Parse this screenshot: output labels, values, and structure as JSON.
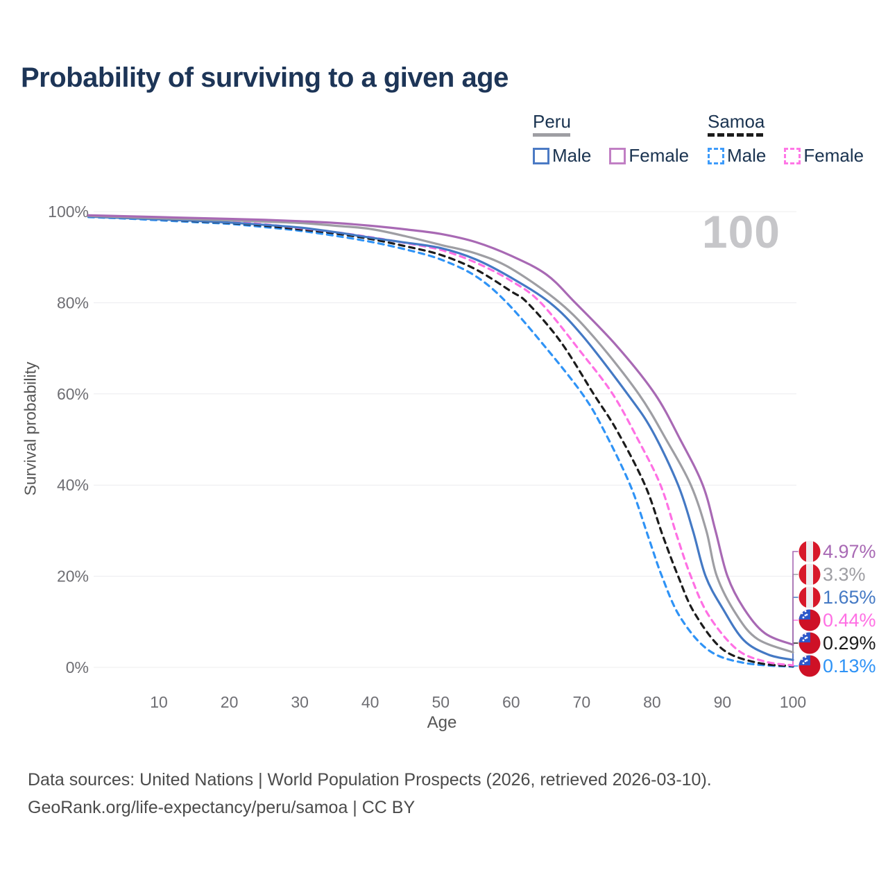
{
  "title": "Probability of surviving to a given age",
  "watermark": "100",
  "legend": {
    "groups": [
      {
        "label": "Peru",
        "line_style": "solid",
        "underline_color": "#9e9ea3",
        "items": [
          {
            "label": "Male",
            "color": "#4b7ac4"
          },
          {
            "label": "Female",
            "color": "#c17fc4"
          }
        ]
      },
      {
        "label": "Samoa",
        "line_style": "dashed",
        "underline_color": "#1c1c1c",
        "items": [
          {
            "label": "Male",
            "color": "#3d9bfa"
          },
          {
            "label": "Female",
            "color": "#ff77e6"
          }
        ]
      }
    ]
  },
  "axes": {
    "y_title": "Survival probability",
    "x_title": "Age",
    "y_ticks": [
      {
        "v": 100,
        "label": "100%"
      },
      {
        "v": 80,
        "label": "80%"
      },
      {
        "v": 60,
        "label": "60%"
      },
      {
        "v": 40,
        "label": "40%"
      },
      {
        "v": 20,
        "label": "20%"
      },
      {
        "v": 0,
        "label": "0%"
      }
    ],
    "x_ticks": [
      {
        "v": 10,
        "label": "10"
      },
      {
        "v": 20,
        "label": "20"
      },
      {
        "v": 30,
        "label": "30"
      },
      {
        "v": 40,
        "label": "40"
      },
      {
        "v": 50,
        "label": "50"
      },
      {
        "v": 60,
        "label": "60"
      },
      {
        "v": 70,
        "label": "70"
      },
      {
        "v": 80,
        "label": "80"
      },
      {
        "v": 90,
        "label": "90"
      },
      {
        "v": 100,
        "label": "100"
      }
    ]
  },
  "chart_data": {
    "type": "line",
    "title": "Probability of surviving to a given age",
    "xlabel": "Age",
    "ylabel": "Survival probability",
    "xlim": [
      0,
      100
    ],
    "ylim": [
      0,
      100
    ],
    "grid": "horizontal",
    "legend_position": "top-right",
    "series": [
      {
        "name": "Samoa Male",
        "country": "Samoa",
        "sex": "Male",
        "color": "#2f93f6",
        "dash": true,
        "flag": "samoa",
        "end_label": "0.13%",
        "label_slot": 5,
        "points": [
          [
            0,
            98.8
          ],
          [
            5,
            98.5
          ],
          [
            10,
            98.1
          ],
          [
            15,
            97.7
          ],
          [
            20,
            97.3
          ],
          [
            25,
            96.6
          ],
          [
            30,
            95.8
          ],
          [
            35,
            94.7
          ],
          [
            40,
            93.4
          ],
          [
            45,
            91.7
          ],
          [
            50,
            89.5
          ],
          [
            55,
            85.8
          ],
          [
            59.4,
            80
          ],
          [
            65,
            70
          ],
          [
            70.1,
            60
          ],
          [
            73,
            52.5
          ],
          [
            76.9,
            40
          ],
          [
            79.5,
            28.5
          ],
          [
            81.4,
            20
          ],
          [
            84,
            11
          ],
          [
            88,
            3.8
          ],
          [
            93,
            1
          ],
          [
            100,
            0.13
          ]
        ]
      },
      {
        "name": "Samoa Both sexes",
        "country": "Samoa",
        "sex": "All",
        "color": "#1c1c1c",
        "dash": true,
        "flag": "samoa",
        "end_label": "0.29%",
        "label_slot": 4,
        "points": [
          [
            0,
            99.0
          ],
          [
            5,
            98.7
          ],
          [
            10,
            98.3
          ],
          [
            15,
            97.9
          ],
          [
            20,
            97.5
          ],
          [
            25,
            96.9
          ],
          [
            30,
            96.1
          ],
          [
            35,
            95.2
          ],
          [
            40,
            94.0
          ],
          [
            45,
            92.4
          ],
          [
            50,
            90.5
          ],
          [
            55,
            87.3
          ],
          [
            60,
            82.5
          ],
          [
            62.3,
            80
          ],
          [
            67,
            71.5
          ],
          [
            71.7,
            60
          ],
          [
            75,
            52
          ],
          [
            79,
            40
          ],
          [
            81.5,
            29
          ],
          [
            83.7,
            20
          ],
          [
            86,
            12
          ],
          [
            90,
            4
          ],
          [
            95,
            1
          ],
          [
            100,
            0.29
          ]
        ]
      },
      {
        "name": "Samoa Female",
        "country": "Samoa",
        "sex": "Female",
        "color": "#ff70e4",
        "dash": true,
        "flag": "samoa",
        "end_label": "0.44%",
        "label_slot": 3,
        "points": [
          [
            0,
            99.1
          ],
          [
            5,
            98.8
          ],
          [
            10,
            98.5
          ],
          [
            15,
            98.1
          ],
          [
            20,
            97.8
          ],
          [
            25,
            97.2
          ],
          [
            30,
            96.4
          ],
          [
            35,
            95.5
          ],
          [
            40,
            94.4
          ],
          [
            45,
            93.1
          ],
          [
            50,
            91.6
          ],
          [
            55,
            88.8
          ],
          [
            60,
            84.8
          ],
          [
            64.2,
            80
          ],
          [
            70,
            69
          ],
          [
            74.4,
            60
          ],
          [
            78,
            50
          ],
          [
            81.2,
            40
          ],
          [
            83.5,
            29
          ],
          [
            85.5,
            20
          ],
          [
            88,
            11.5
          ],
          [
            92,
            4
          ],
          [
            96,
            1.3
          ],
          [
            100,
            0.44
          ]
        ]
      },
      {
        "name": "Peru Male",
        "country": "Peru",
        "sex": "Male",
        "color": "#4479c4",
        "dash": false,
        "flag": "peru",
        "end_label": "1.65%",
        "label_slot": 2,
        "points": [
          [
            0,
            98.9
          ],
          [
            5,
            98.6
          ],
          [
            10,
            98.3
          ],
          [
            15,
            98.0
          ],
          [
            20,
            97.6
          ],
          [
            25,
            97.1
          ],
          [
            30,
            96.5
          ],
          [
            35,
            95.5
          ],
          [
            40,
            94.3
          ],
          [
            45,
            93.2
          ],
          [
            50,
            92.0
          ],
          [
            55,
            89.5
          ],
          [
            60,
            85.5
          ],
          [
            65.5,
            80
          ],
          [
            70,
            73
          ],
          [
            76.5,
            60
          ],
          [
            80,
            52
          ],
          [
            83.7,
            40
          ],
          [
            85.8,
            30
          ],
          [
            87.6,
            20
          ],
          [
            90,
            13
          ],
          [
            93,
            6
          ],
          [
            96.5,
            2.8
          ],
          [
            100,
            1.65
          ]
        ]
      },
      {
        "name": "Peru Both sexes",
        "country": "Peru",
        "sex": "All",
        "color": "#9e9ea3",
        "dash": false,
        "flag": "peru",
        "end_label": "3.3%",
        "label_slot": 1,
        "points": [
          [
            0,
            99.05
          ],
          [
            5,
            98.8
          ],
          [
            10,
            98.55
          ],
          [
            15,
            98.3
          ],
          [
            20,
            98.1
          ],
          [
            25,
            97.8
          ],
          [
            30,
            97.5
          ],
          [
            35,
            96.9
          ],
          [
            40,
            96.2
          ],
          [
            45,
            94.6
          ],
          [
            50,
            92.7
          ],
          [
            55,
            90.8
          ],
          [
            60,
            87.5
          ],
          [
            66.9,
            80
          ],
          [
            72,
            72
          ],
          [
            78.1,
            60
          ],
          [
            82,
            50
          ],
          [
            85.5,
            40
          ],
          [
            87.7,
            30
          ],
          [
            89.2,
            20
          ],
          [
            92,
            11.5
          ],
          [
            95,
            6.2
          ],
          [
            100,
            3.3
          ]
        ]
      },
      {
        "name": "Peru Female",
        "country": "Peru",
        "sex": "Female",
        "color": "#a869b4",
        "dash": false,
        "flag": "peru",
        "end_label": "4.97%",
        "label_slot": 0,
        "points": [
          [
            0,
            99.2
          ],
          [
            5,
            99.0
          ],
          [
            10,
            98.8
          ],
          [
            15,
            98.6
          ],
          [
            20,
            98.4
          ],
          [
            25,
            98.2
          ],
          [
            30,
            97.9
          ],
          [
            35,
            97.5
          ],
          [
            40,
            96.9
          ],
          [
            45,
            96.1
          ],
          [
            50,
            95.1
          ],
          [
            55,
            93.3
          ],
          [
            60,
            90.3
          ],
          [
            65,
            86.2
          ],
          [
            69.1,
            80
          ],
          [
            75,
            70.5
          ],
          [
            80.4,
            60
          ],
          [
            84,
            50
          ],
          [
            87.2,
            40
          ],
          [
            89,
            30
          ],
          [
            90.7,
            20
          ],
          [
            93,
            13
          ],
          [
            96,
            7.5
          ],
          [
            100,
            4.97
          ]
        ]
      }
    ]
  },
  "flag_colors": {
    "peru_red": "#d7182a",
    "peru_white": "#ededf0",
    "samoa_red": "#ce1126",
    "samoa_blue": "#2c57c9",
    "samoa_star": "#ffffff"
  },
  "footer": {
    "line1": "Data sources: United Nations | World Population Prospects (2026, retrieved 2026-03-10).",
    "line2": "GeoRank.org/life-expectancy/peru/samoa | CC BY"
  }
}
